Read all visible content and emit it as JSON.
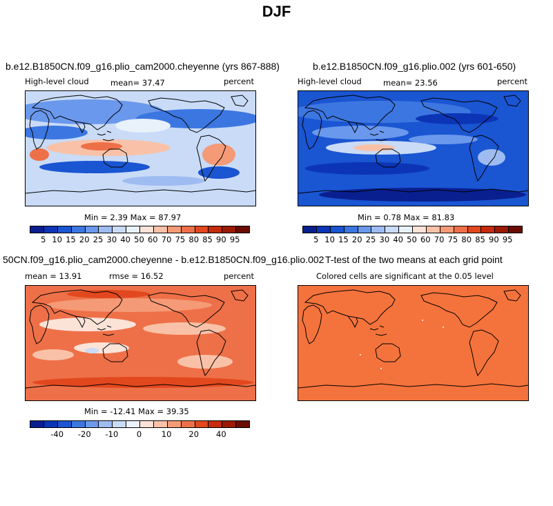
{
  "figure_title": "DJF",
  "colors": {
    "abs_scale": [
      "#0a1f8f",
      "#0c35b5",
      "#1a55d2",
      "#3c76e0",
      "#6a98ec",
      "#9ebcf2",
      "#c9dbf6",
      "#e9f1fb",
      "#fbe3d8",
      "#f9c2a8",
      "#f59a76",
      "#ee7048",
      "#e2481e",
      "#c52b0c",
      "#9b1a06",
      "#6b0c02"
    ],
    "diff_scale": [
      "#0a1f8f",
      "#0c35b5",
      "#1a55d2",
      "#3c76e0",
      "#6a98ec",
      "#9ebcf2",
      "#c9dbf6",
      "#e9f1fb",
      "#fbe3d8",
      "#f9c2a8",
      "#f59a76",
      "#ee7048",
      "#e2481e",
      "#c52b0c",
      "#9b1a06",
      "#6b0c02"
    ],
    "ttest_fill": "#f4733c"
  },
  "panels": {
    "p1": {
      "title": "b.e12.B1850CN.f09_g16.plio_cam2000.cheyenne (yrs 867-888)",
      "variable": "High-level cloud",
      "mean": "mean=  37.47",
      "units": "percent",
      "minmax": "Min =    2.39  Max =   87.97"
    },
    "p2": {
      "title": "b.e12.B1850CN.f09_g16.plio.002 (yrs 601-650)",
      "variable": "High-level cloud",
      "mean": "mean=  23.56",
      "units": "percent",
      "minmax": "Min =    0.78  Max =   81.83"
    },
    "p3": {
      "title": "50CN.f09_g16.plio_cam2000.cheyenne - b.e12.B1850CN.f09_g16.plio.002",
      "mean": "mean =   13.91",
      "rmse": "rmse =   16.52",
      "units": "percent",
      "minmax": "Min = -12.41  Max =   39.35"
    },
    "p4": {
      "title": "T-test of the two means at each grid point",
      "subtitle": "Colored cells are significant at the 0.05 level"
    }
  },
  "colorbar_abs": {
    "labels": [
      "5",
      "10",
      "15",
      "20",
      "25",
      "30",
      "40",
      "50",
      "60",
      "70",
      "75",
      "80",
      "85",
      "90",
      "95"
    ]
  },
  "colorbar_diff": {
    "labels": [
      "-40",
      "-20",
      "-10",
      "0",
      "10",
      "20",
      "40"
    ]
  },
  "chart_data": [
    {
      "type": "heatmap",
      "title": "b.e12.B1850CN.f09_g16.plio_cam2000.cheyenne (yrs 867-888)",
      "variable": "High-level cloud",
      "units": "percent",
      "mean": 37.47,
      "min": 2.39,
      "max": 87.97,
      "levels": [
        5,
        10,
        15,
        20,
        25,
        30,
        40,
        50,
        60,
        70,
        75,
        80,
        85,
        90,
        95
      ]
    },
    {
      "type": "heatmap",
      "title": "b.e12.B1850CN.f09_g16.plio.002 (yrs 601-650)",
      "variable": "High-level cloud",
      "units": "percent",
      "mean": 23.56,
      "min": 0.78,
      "max": 81.83,
      "levels": [
        5,
        10,
        15,
        20,
        25,
        30,
        40,
        50,
        60,
        70,
        75,
        80,
        85,
        90,
        95
      ]
    },
    {
      "type": "heatmap",
      "title": "50CN.f09_g16.plio_cam2000.cheyenne - b.e12.B1850CN.f09_g16.plio.002",
      "units": "percent",
      "mean": 13.91,
      "rmse": 16.52,
      "min": -12.41,
      "max": 39.35,
      "levels": [
        -40,
        -20,
        -10,
        0,
        10,
        20,
        40
      ]
    },
    {
      "type": "heatmap",
      "title": "T-test of the two means at each grid point",
      "subtitle": "Colored cells are significant at the 0.05 level"
    }
  ]
}
